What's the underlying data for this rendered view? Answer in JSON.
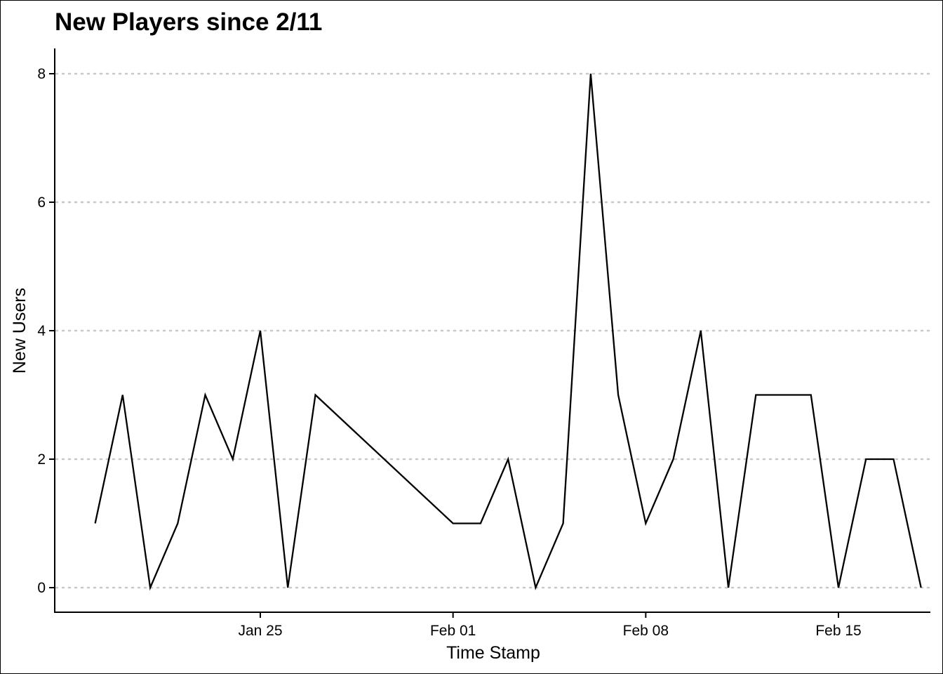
{
  "chart_data": {
    "type": "line",
    "title": "New Players since 2/11",
    "xlabel": "Time Stamp",
    "ylabel": "New Users",
    "x_ticks": [
      "Jan 25",
      "Feb 01",
      "Feb 08",
      "Feb 15"
    ],
    "y_ticks": [
      "0",
      "2",
      "4",
      "6",
      "8"
    ],
    "ylim": [
      0,
      8
    ],
    "xlim": [
      "2022-01-17",
      "2022-02-20"
    ],
    "grid": "horizontal-dotted",
    "legend": "none",
    "series": [
      {
        "color": "#000000",
        "points": [
          {
            "x": "2022-01-19",
            "y": 1
          },
          {
            "x": "2022-01-20",
            "y": 3
          },
          {
            "x": "2022-01-21",
            "y": 0
          },
          {
            "x": "2022-01-22",
            "y": 1
          },
          {
            "x": "2022-01-23",
            "y": 3
          },
          {
            "x": "2022-01-24",
            "y": 2
          },
          {
            "x": "2022-01-25",
            "y": 4
          },
          {
            "x": "2022-01-26",
            "y": 0
          },
          {
            "x": "2022-01-27",
            "y": 3
          },
          {
            "x": "2022-02-01",
            "y": 1
          },
          {
            "x": "2022-02-02",
            "y": 1
          },
          {
            "x": "2022-02-03",
            "y": 2
          },
          {
            "x": "2022-02-04",
            "y": 0
          },
          {
            "x": "2022-02-05",
            "y": 1
          },
          {
            "x": "2022-02-06",
            "y": 8
          },
          {
            "x": "2022-02-07",
            "y": 3
          },
          {
            "x": "2022-02-08",
            "y": 1
          },
          {
            "x": "2022-02-09",
            "y": 2
          },
          {
            "x": "2022-02-10",
            "y": 4
          },
          {
            "x": "2022-02-11",
            "y": 0
          },
          {
            "x": "2022-02-12",
            "y": 3
          },
          {
            "x": "2022-02-13",
            "y": 3
          },
          {
            "x": "2022-02-14",
            "y": 3
          },
          {
            "x": "2022-02-15",
            "y": 0
          },
          {
            "x": "2022-02-16",
            "y": 2
          },
          {
            "x": "2022-02-17",
            "y": 2
          },
          {
            "x": "2022-02-18",
            "y": 0
          }
        ]
      }
    ]
  }
}
